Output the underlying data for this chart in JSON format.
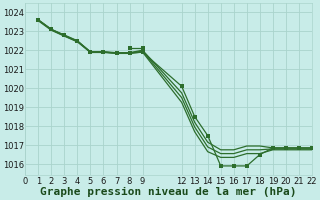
{
  "background_color": "#c8ece8",
  "grid_color": "#aad4cc",
  "line_color": "#2d6e2d",
  "xlim": [
    0,
    22
  ],
  "ylim": [
    1015.4,
    1024.5
  ],
  "yticks": [
    1016,
    1017,
    1018,
    1019,
    1020,
    1021,
    1022,
    1023,
    1024
  ],
  "xticks": [
    0,
    1,
    2,
    3,
    4,
    5,
    6,
    7,
    8,
    9,
    12,
    13,
    14,
    15,
    16,
    17,
    18,
    19,
    20,
    21,
    22
  ],
  "xlabel": "Graphe pression niveau de la mer (hPa)",
  "xlabel_fontsize": 8,
  "tick_fontsize": 6,
  "line1": {
    "x": [
      1,
      2,
      3,
      4,
      5,
      6,
      7,
      8,
      9,
      12,
      13,
      14,
      15,
      16,
      17,
      18,
      19,
      20,
      21,
      22
    ],
    "y": [
      1023.6,
      1023.1,
      1022.8,
      1022.5,
      1021.9,
      1021.9,
      1021.85,
      1021.85,
      1021.9,
      1020.1,
      1018.5,
      1017.5,
      1015.9,
      1015.9,
      1015.9,
      1016.5,
      1016.85,
      1016.85,
      1016.85,
      1016.85
    ]
  },
  "line2": {
    "x": [
      1,
      2,
      3,
      4,
      5,
      6,
      7,
      8,
      9,
      12,
      13,
      14,
      15,
      16,
      17,
      18,
      19,
      20,
      21,
      22
    ],
    "y": [
      1023.6,
      1023.1,
      1022.78,
      1022.48,
      1021.92,
      1021.92,
      1021.87,
      1021.87,
      1022.0,
      1019.75,
      1018.2,
      1017.15,
      1016.75,
      1016.75,
      1016.95,
      1016.95,
      1016.85,
      1016.85,
      1016.85,
      1016.85
    ]
  },
  "line3": {
    "x": [
      1,
      2,
      3,
      4,
      5,
      6,
      7,
      8,
      9,
      12,
      13,
      14,
      15,
      16,
      17,
      18,
      19,
      20,
      21,
      22
    ],
    "y": [
      1023.58,
      1023.08,
      1022.76,
      1022.46,
      1021.9,
      1021.9,
      1021.85,
      1021.85,
      1021.95,
      1019.5,
      1017.95,
      1016.9,
      1016.55,
      1016.55,
      1016.75,
      1016.75,
      1016.8,
      1016.8,
      1016.8,
      1016.8
    ]
  },
  "line4": {
    "x": [
      1,
      2,
      3,
      4,
      5,
      6,
      7,
      8,
      9,
      12,
      13,
      14,
      15,
      16,
      17,
      18,
      19,
      20,
      21,
      22
    ],
    "y": [
      1023.55,
      1023.05,
      1022.74,
      1022.44,
      1021.88,
      1021.88,
      1021.83,
      1021.83,
      1021.9,
      1019.25,
      1017.7,
      1016.65,
      1016.35,
      1016.35,
      1016.55,
      1016.55,
      1016.75,
      1016.75,
      1016.75,
      1016.75
    ]
  },
  "line5": {
    "x": [
      8,
      9
    ],
    "y": [
      1022.1,
      1022.1
    ]
  }
}
